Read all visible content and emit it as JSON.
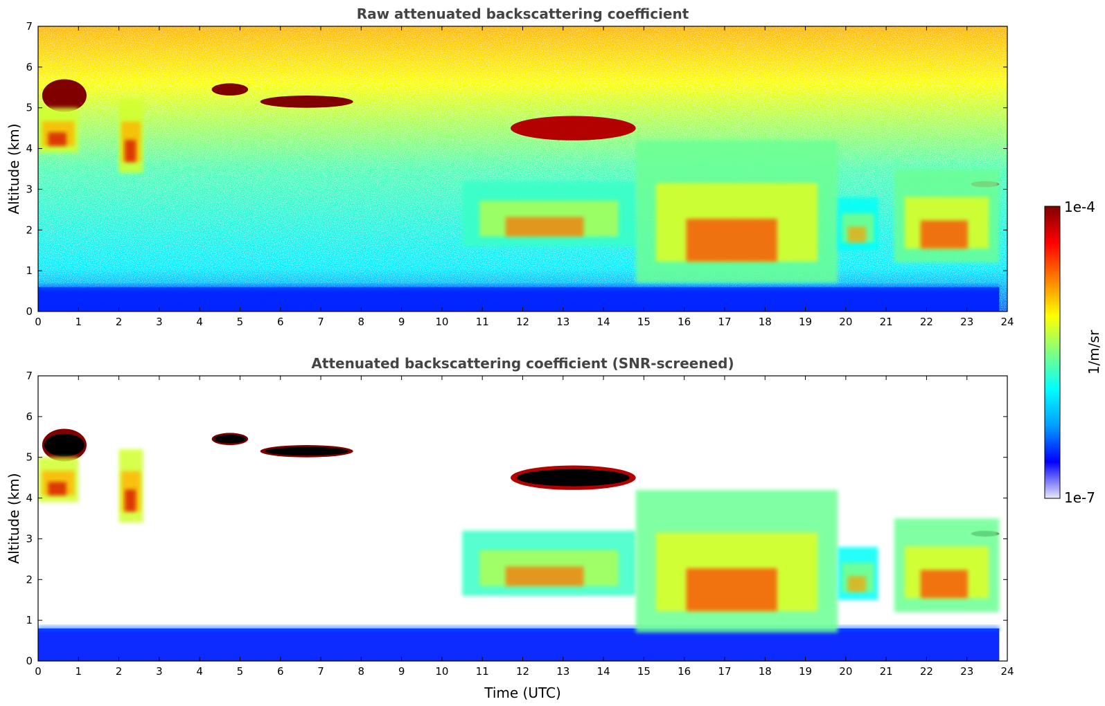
{
  "colors": {
    "frame": "#000000",
    "title": "#444444",
    "colormap": [
      "#e8e8f8",
      "#0000ff",
      "#00a0ff",
      "#00ffff",
      "#80ff80",
      "#ffff00",
      "#ff8000",
      "#ff0000",
      "#800000"
    ],
    "screened_saturation": "#000000"
  },
  "chart_data": [
    {
      "type": "heatmap",
      "id": "raw",
      "title": "Raw attenuated backscattering coefficient",
      "xlabel": "",
      "ylabel": "Altitude (km)",
      "xlim": [
        0,
        24
      ],
      "ylim": [
        0,
        7
      ],
      "xticks": [
        "0",
        "1",
        "2",
        "3",
        "4",
        "5",
        "6",
        "7",
        "8",
        "9",
        "10",
        "11",
        "12",
        "13",
        "14",
        "15",
        "16",
        "17",
        "18",
        "19",
        "20",
        "21",
        "22",
        "23",
        "24"
      ],
      "yticks": [
        "0",
        "1",
        "2",
        "3",
        "4",
        "5",
        "6",
        "7"
      ],
      "colorbar": {
        "label": "1/m/sr",
        "min_label": "1e-7",
        "max_label": "1e-4",
        "scale": "log"
      },
      "features": [
        {
          "kind": "boundary_layer",
          "x": [
            0,
            23.8
          ],
          "y": [
            0,
            0.6
          ],
          "level": 0.15
        },
        {
          "kind": "elevated_cloud",
          "x": [
            0.1,
            1.2
          ],
          "y": [
            4.9,
            5.7
          ],
          "level": 1.0
        },
        {
          "kind": "elevated_cloud",
          "x": [
            4.3,
            5.2
          ],
          "y": [
            5.3,
            5.6
          ],
          "level": 1.0
        },
        {
          "kind": "elevated_cloud",
          "x": [
            5.5,
            7.8
          ],
          "y": [
            5.0,
            5.3
          ],
          "level": 1.0
        },
        {
          "kind": "elevated_cloud",
          "x": [
            11.7,
            14.8
          ],
          "y": [
            4.2,
            4.8
          ],
          "level": 0.95
        },
        {
          "kind": "elevated_cloud",
          "x": [
            23.1,
            23.8
          ],
          "y": [
            3.05,
            3.2
          ],
          "level": 0.95
        },
        {
          "kind": "virga",
          "x": [
            0,
            1.0
          ],
          "y": [
            3.9,
            5.0
          ],
          "level": 0.7
        },
        {
          "kind": "virga",
          "x": [
            2.0,
            2.6
          ],
          "y": [
            3.4,
            5.2
          ],
          "level": 0.7
        },
        {
          "kind": "aerosol_layer",
          "x": [
            10.5,
            14.8
          ],
          "y": [
            1.6,
            3.2
          ],
          "level": 0.55
        },
        {
          "kind": "aerosol_layer",
          "x": [
            14.8,
            19.8
          ],
          "y": [
            0.7,
            4.2
          ],
          "level": 0.6
        },
        {
          "kind": "aerosol_layer",
          "x": [
            19.8,
            20.8
          ],
          "y": [
            1.5,
            2.8
          ],
          "level": 0.5
        },
        {
          "kind": "aerosol_layer",
          "x": [
            21.2,
            23.8
          ],
          "y": [
            1.2,
            3.5
          ],
          "level": 0.6
        }
      ]
    },
    {
      "type": "heatmap",
      "id": "screened",
      "title": "Attenuated backscattering coefficient (SNR-screened)",
      "xlabel": "Time (UTC)",
      "ylabel": "Altitude (km)",
      "xlim": [
        0,
        24
      ],
      "ylim": [
        0,
        7
      ],
      "xticks": [
        "0",
        "1",
        "2",
        "3",
        "4",
        "5",
        "6",
        "7",
        "8",
        "9",
        "10",
        "11",
        "12",
        "13",
        "14",
        "15",
        "16",
        "17",
        "18",
        "19",
        "20",
        "21",
        "22",
        "23",
        "24"
      ],
      "yticks": [
        "0",
        "1",
        "2",
        "3",
        "4",
        "5",
        "6",
        "7"
      ],
      "features": [
        {
          "kind": "boundary_layer",
          "x": [
            0,
            23.8
          ],
          "y": [
            0,
            0.8
          ],
          "level": 0.15
        },
        {
          "kind": "elevated_cloud",
          "x": [
            0.1,
            1.2
          ],
          "y": [
            4.9,
            5.7
          ],
          "level": 1.0
        },
        {
          "kind": "elevated_cloud",
          "x": [
            4.3,
            5.2
          ],
          "y": [
            5.3,
            5.6
          ],
          "level": 1.0
        },
        {
          "kind": "elevated_cloud",
          "x": [
            5.5,
            7.8
          ],
          "y": [
            5.0,
            5.3
          ],
          "level": 1.0
        },
        {
          "kind": "elevated_cloud",
          "x": [
            11.7,
            14.8
          ],
          "y": [
            4.2,
            4.8
          ],
          "level": 0.95
        },
        {
          "kind": "elevated_cloud",
          "x": [
            23.1,
            23.8
          ],
          "y": [
            3.05,
            3.2
          ],
          "level": 0.95
        },
        {
          "kind": "virga",
          "x": [
            0,
            1.0
          ],
          "y": [
            3.9,
            5.0
          ],
          "level": 0.7
        },
        {
          "kind": "virga",
          "x": [
            2.0,
            2.6
          ],
          "y": [
            3.4,
            5.2
          ],
          "level": 0.7
        },
        {
          "kind": "aerosol_layer",
          "x": [
            10.5,
            14.8
          ],
          "y": [
            1.6,
            3.2
          ],
          "level": 0.55
        },
        {
          "kind": "aerosol_layer",
          "x": [
            14.8,
            19.8
          ],
          "y": [
            0.7,
            4.2
          ],
          "level": 0.6
        },
        {
          "kind": "aerosol_layer",
          "x": [
            19.8,
            20.8
          ],
          "y": [
            1.5,
            2.8
          ],
          "level": 0.5
        },
        {
          "kind": "aerosol_layer",
          "x": [
            21.2,
            23.8
          ],
          "y": [
            1.2,
            3.5
          ],
          "level": 0.6
        }
      ]
    }
  ]
}
